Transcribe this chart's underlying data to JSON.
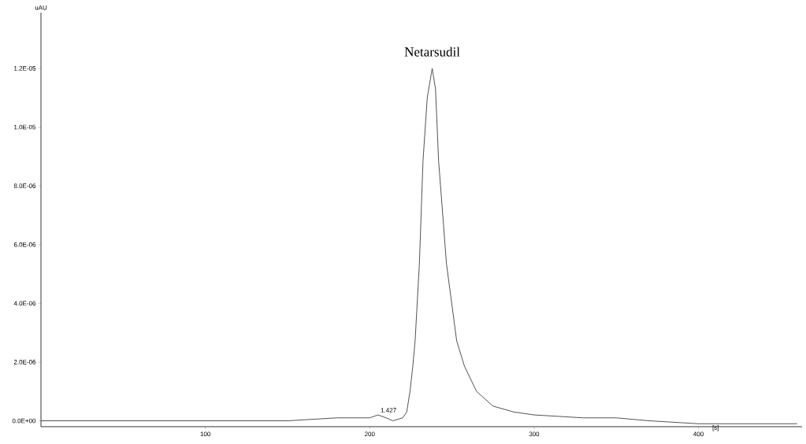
{
  "chart_data": {
    "type": "line",
    "ylabel": "uAU",
    "xlabel": "[s]",
    "x": [
      0,
      50,
      100,
      150,
      180,
      200,
      205,
      210,
      214,
      220,
      222.5,
      224.5,
      226.2,
      227.6,
      230.2,
      232.4,
      235,
      238,
      240,
      241.9,
      246.7,
      252.9,
      257.6,
      265,
      275,
      287.6,
      300,
      330,
      350,
      370,
      400,
      430,
      460
    ],
    "series": [
      {
        "color": "#404040",
        "values": [
          0,
          0,
          0,
          0,
          1e-07,
          1e-07,
          2e-07,
          1e-07,
          0,
          1e-07,
          3e-07,
          1e-06,
          1.86e-06,
          2.72e-06,
          5.34e-06,
          8.85e-06,
          1.1e-05,
          1.2e-05,
          1.13e-05,
          8.85e-06,
          5.34e-06,
          2.72e-06,
          1.86e-06,
          1e-06,
          5e-07,
          3e-07,
          2e-07,
          1e-07,
          1e-07,
          0,
          -1e-07,
          -1e-07,
          -1e-07
        ]
      }
    ],
    "xlim": [
      0,
      463
    ],
    "ylim": [
      -2e-07,
      1.39e-05
    ],
    "xticks": [
      100,
      200,
      300,
      400
    ],
    "yticks": [
      {
        "value": 0,
        "label": "0.0E+00"
      },
      {
        "value": 2e-06,
        "label": "2.0E-06"
      },
      {
        "value": 4e-06,
        "label": "4.0E-06"
      },
      {
        "value": 6e-06,
        "label": "6.0E-06"
      },
      {
        "value": 8e-06,
        "label": "8.0E-06"
      },
      {
        "value": 1e-05,
        "label": "1.0E-05"
      },
      {
        "value": 1.2e-05,
        "label": "1.2E-05"
      }
    ],
    "annotations": [
      {
        "text": "Netarsudil",
        "x": 238,
        "y": 1.2e-05
      },
      {
        "text": "1.427",
        "x": 209.5,
        "y": 2e-07
      }
    ],
    "grid": false,
    "marker": "none",
    "line_style": "solid"
  }
}
